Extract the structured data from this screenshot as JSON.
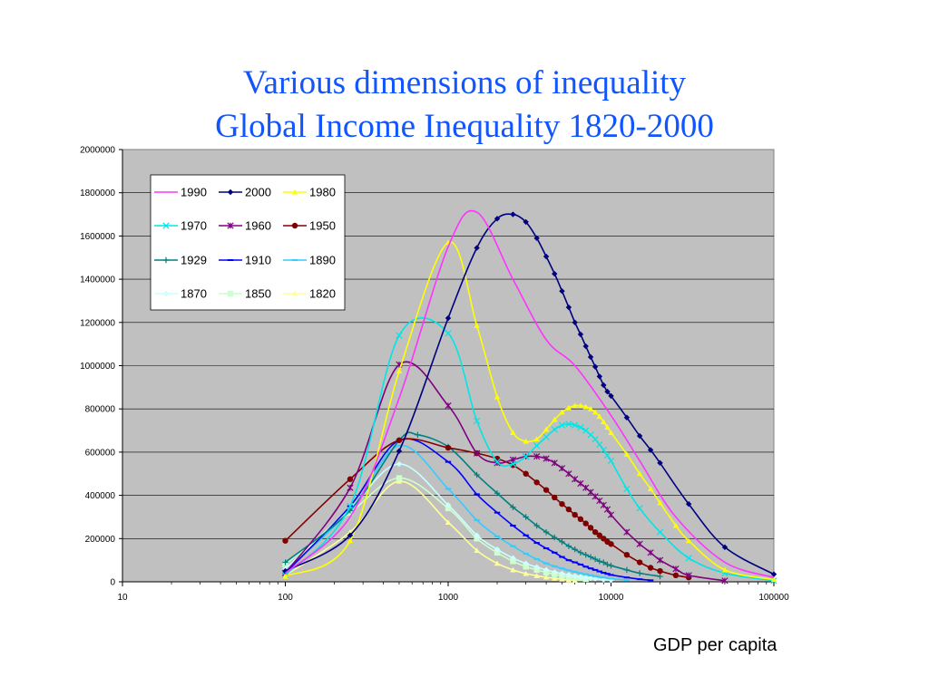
{
  "slide": {
    "title_line1": "Various dimensions of inequality",
    "title_line2": "Global Income Inequality 1820-2000",
    "x_caption": "GDP per capita"
  },
  "chart_data": {
    "type": "line",
    "title": "",
    "xlabel": "GDP per capita",
    "ylabel": "",
    "xscale": "log",
    "xlim": [
      10,
      100000
    ],
    "ylim": [
      0,
      2000000
    ],
    "xticks": [
      "10",
      "100",
      "1000",
      "10000",
      "100000"
    ],
    "yticks": [
      "0",
      "200000",
      "400000",
      "600000",
      "800000",
      "1000000",
      "1200000",
      "1400000",
      "1600000",
      "1800000",
      "2000000"
    ],
    "grid": "horizontal",
    "plot_background": "#c0c0c0",
    "legend_position": "top-left",
    "series": [
      {
        "name": "1990",
        "color": "#ff33ff",
        "marker": "none",
        "x": [
          100,
          250,
          500,
          1000,
          1500,
          2500,
          4000,
          6000,
          10000,
          15000,
          25000,
          50000,
          100000
        ],
        "y": [
          40000,
          300000,
          850000,
          1550000,
          1710000,
          1400000,
          1120000,
          1000000,
          770000,
          560000,
          300000,
          90000,
          20000
        ]
      },
      {
        "name": "2000",
        "color": "#000080",
        "marker": "diamond",
        "x": [
          100,
          250,
          500,
          1000,
          1500,
          2000,
          2500,
          3000,
          3500,
          4000,
          4500,
          5000,
          5500,
          6000,
          6500,
          7000,
          7500,
          8000,
          8500,
          9000,
          9500,
          10000,
          12500,
          15000,
          17500,
          20000,
          30000,
          50000,
          100000
        ],
        "y": [
          50000,
          215000,
          605000,
          1220000,
          1545000,
          1680000,
          1700000,
          1665000,
          1590000,
          1505000,
          1425000,
          1345000,
          1270000,
          1200000,
          1145000,
          1090000,
          1040000,
          995000,
          950000,
          910000,
          880000,
          860000,
          760000,
          675000,
          610000,
          550000,
          360000,
          160000,
          35000
        ]
      },
      {
        "name": "1980",
        "color": "#ffff00",
        "marker": "triangle",
        "x": [
          100,
          250,
          500,
          1000,
          1500,
          2000,
          2500,
          3000,
          3500,
          4000,
          4500,
          5000,
          5500,
          6000,
          6500,
          7000,
          7500,
          8000,
          8500,
          9000,
          9500,
          10000,
          12500,
          15000,
          17500,
          20000,
          25000,
          30000,
          50000,
          100000
        ],
        "y": [
          25000,
          190000,
          975000,
          1570000,
          1185000,
          855000,
          690000,
          650000,
          660000,
          705000,
          750000,
          785000,
          805000,
          815000,
          815000,
          810000,
          800000,
          785000,
          765000,
          740000,
          715000,
          690000,
          590000,
          500000,
          430000,
          365000,
          260000,
          190000,
          55000,
          10000
        ]
      },
      {
        "name": "1970",
        "color": "#00e5e5",
        "marker": "x",
        "x": [
          100,
          250,
          500,
          1000,
          1500,
          2000,
          2500,
          3000,
          3500,
          4000,
          4500,
          5000,
          5500,
          6000,
          6500,
          7000,
          7500,
          8000,
          8500,
          9000,
          9500,
          10000,
          12500,
          15000,
          20000,
          30000,
          50000,
          100000
        ],
        "y": [
          30000,
          350000,
          1140000,
          1150000,
          745000,
          555000,
          545000,
          580000,
          630000,
          670000,
          705000,
          725000,
          730000,
          725000,
          715000,
          700000,
          680000,
          660000,
          635000,
          610000,
          585000,
          560000,
          430000,
          340000,
          230000,
          110000,
          40000,
          5000
        ]
      },
      {
        "name": "1960",
        "color": "#800080",
        "marker": "star",
        "x": [
          100,
          250,
          500,
          1000,
          1500,
          2000,
          2500,
          3000,
          3500,
          4000,
          4500,
          5000,
          5500,
          6000,
          6500,
          7000,
          7500,
          8000,
          8500,
          9000,
          9500,
          10000,
          12500,
          15000,
          17500,
          20000,
          25000,
          30000,
          50000
        ],
        "y": [
          40000,
          435000,
          1005000,
          815000,
          595000,
          550000,
          565000,
          580000,
          580000,
          570000,
          550000,
          525000,
          500000,
          475000,
          455000,
          435000,
          415000,
          395000,
          375000,
          355000,
          335000,
          310000,
          230000,
          175000,
          135000,
          100000,
          60000,
          30000,
          5000
        ]
      },
      {
        "name": "1950",
        "color": "#800000",
        "marker": "circle",
        "x": [
          100,
          250,
          500,
          1000,
          1500,
          2000,
          2500,
          3000,
          3500,
          4000,
          4500,
          5000,
          5500,
          6000,
          6500,
          7000,
          7500,
          8000,
          8500,
          9000,
          9500,
          10000,
          12500,
          15000,
          17500,
          20000,
          25000,
          30000
        ],
        "y": [
          190000,
          475000,
          655000,
          620000,
          595000,
          570000,
          540000,
          500000,
          460000,
          425000,
          390000,
          360000,
          335000,
          310000,
          290000,
          270000,
          250000,
          230000,
          215000,
          200000,
          185000,
          175000,
          125000,
          90000,
          65000,
          50000,
          30000,
          20000
        ]
      },
      {
        "name": "1929",
        "color": "#008080",
        "marker": "plus",
        "x": [
          100,
          250,
          500,
          650,
          1000,
          1500,
          2000,
          2500,
          3000,
          3500,
          4000,
          4500,
          5000,
          5500,
          6000,
          6500,
          7000,
          7500,
          8000,
          8500,
          9000,
          9500,
          10000,
          12500,
          15000,
          20000
        ],
        "y": [
          90000,
          330000,
          655000,
          680000,
          625000,
          495000,
          410000,
          345000,
          300000,
          260000,
          230000,
          205000,
          185000,
          165000,
          150000,
          135000,
          125000,
          115000,
          105000,
          95000,
          90000,
          80000,
          75000,
          55000,
          40000,
          25000
        ]
      },
      {
        "name": "1910",
        "color": "#0000ff",
        "marker": "dash",
        "x": [
          100,
          250,
          500,
          1000,
          1500,
          2000,
          2500,
          3000,
          3500,
          4000,
          4500,
          5000,
          5500,
          6000,
          6500,
          7000,
          7500,
          8000,
          8500,
          9000,
          9500,
          10000,
          12500,
          15000,
          17500
        ],
        "y": [
          40000,
          350000,
          655000,
          555000,
          405000,
          320000,
          260000,
          215000,
          180000,
          155000,
          135000,
          115000,
          100000,
          90000,
          80000,
          70000,
          62000,
          55000,
          48000,
          42000,
          37000,
          32000,
          20000,
          12000,
          7000
        ]
      },
      {
        "name": "1890",
        "color": "#33ccff",
        "marker": "dash",
        "x": [
          100,
          250,
          500,
          1000,
          1500,
          2000,
          2500,
          3000,
          3500,
          4000,
          4500,
          5000,
          5500,
          6000,
          6500,
          7000,
          7500,
          8000,
          9000,
          10000,
          12500
        ],
        "y": [
          50000,
          330000,
          630000,
          430000,
          285000,
          210000,
          165000,
          130000,
          105000,
          85000,
          72000,
          62000,
          53000,
          46000,
          40000,
          35000,
          30000,
          26000,
          20000,
          15000,
          8000
        ]
      },
      {
        "name": "1870",
        "color": "#ccffff",
        "marker": "diamond",
        "x": [
          100,
          250,
          500,
          1000,
          1500,
          2000,
          2500,
          3000,
          3500,
          4000,
          4500,
          5000,
          5500,
          6000,
          6500,
          7000,
          7500,
          8000,
          9000,
          10000
        ],
        "y": [
          60000,
          340000,
          545000,
          355000,
          215000,
          150000,
          110000,
          85000,
          68000,
          55000,
          45000,
          38000,
          32000,
          27000,
          23000,
          19000,
          16000,
          14000,
          10000,
          8000
        ]
      },
      {
        "name": "1850",
        "color": "#ccffcc",
        "marker": "square",
        "x": [
          100,
          250,
          500,
          1000,
          1500,
          2000,
          2500,
          3000,
          3500,
          4000,
          4500,
          5000,
          5500,
          6000,
          6500,
          7000
        ],
        "y": [
          80000,
          320000,
          480000,
          340000,
          200000,
          135000,
          95000,
          70000,
          55000,
          43000,
          35000,
          28000,
          23000,
          19000,
          16000,
          13000
        ]
      },
      {
        "name": "1820",
        "color": "#ffff99",
        "marker": "triangle",
        "x": [
          100,
          250,
          500,
          1000,
          1500,
          2000,
          2500,
          3000,
          3500,
          4000,
          4500,
          5000,
          5500,
          6000
        ],
        "y": [
          30000,
          230000,
          465000,
          275000,
          145000,
          85000,
          55000,
          38000,
          28000,
          21000,
          16000,
          12000,
          9000,
          7000
        ]
      }
    ]
  }
}
